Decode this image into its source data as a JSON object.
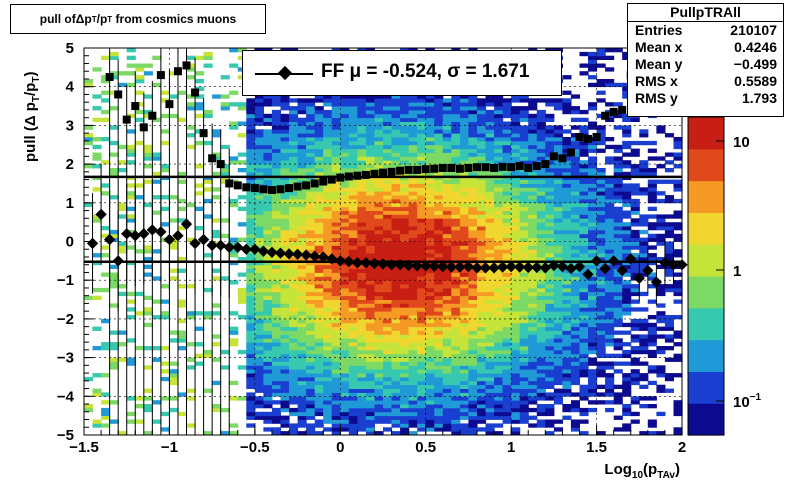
{
  "title": {
    "prefix": "pull of ",
    "delta": "Δ",
    "p": " p",
    "sub_t": "T",
    "slash": "/p",
    "sub_t2": "T",
    "suffix": " from cosmics muons"
  },
  "stats": {
    "name": "PullpTRAll",
    "rows": [
      {
        "label": "Entries",
        "value": "210107"
      },
      {
        "label": "Mean x",
        "value": "0.4246"
      },
      {
        "label": "Mean y",
        "value": "−0.499"
      },
      {
        "label": "RMS x",
        "value": "0.5589"
      },
      {
        "label": "RMS y",
        "value": "1.793"
      }
    ]
  },
  "legend": {
    "text": "FF μ = -0.524, σ =   1.671"
  },
  "colors": {
    "palette": [
      "#0c0a8f",
      "#1a3fd0",
      "#1f9ad6",
      "#37c8b0",
      "#7cd966",
      "#c6e33a",
      "#f1d62f",
      "#f59a25",
      "#e0491b",
      "#c81f14"
    ]
  },
  "chart_data": {
    "type": "heatmap",
    "xlabel": "Log10(pTAv)",
    "ylabel": "pull (Δ pT/pT)",
    "xlim": [
      -1.5,
      2
    ],
    "ylim": [
      -5,
      5
    ],
    "x_ticks": [
      "−1.5",
      "−1",
      "−0.5",
      "0",
      "0.5",
      "1",
      "1.5",
      "2"
    ],
    "y_ticks": [
      "5",
      "4",
      "3",
      "2",
      "1",
      "0",
      "−1",
      "−2",
      "−3",
      "−4",
      "−5"
    ],
    "z_scale": "log",
    "z_ticks": [
      "10",
      "1",
      "10−1"
    ],
    "grid": true,
    "lines": [
      {
        "name": "mean fit",
        "y": -0.524
      },
      {
        "name": "sigma fit",
        "y": 1.671
      }
    ],
    "series": [
      {
        "name": "FF μ = -0.524, σ =   1.671",
        "x": [
          -1.45,
          -1.4,
          -1.35,
          -1.3,
          -1.25,
          -1.2,
          -1.15,
          -1.1,
          -1.05,
          -1.0,
          -0.95,
          -0.9,
          -0.85,
          -0.8,
          -0.75,
          -0.7,
          -0.65,
          -0.6,
          -0.55,
          -0.5,
          -0.45,
          -0.4,
          -0.35,
          -0.3,
          -0.25,
          -0.2,
          -0.15,
          -0.1,
          -0.05,
          0.0,
          0.05,
          0.1,
          0.15,
          0.2,
          0.25,
          0.3,
          0.35,
          0.4,
          0.45,
          0.5,
          0.55,
          0.6,
          0.65,
          0.7,
          0.75,
          0.8,
          0.85,
          0.9,
          0.95,
          1.0,
          1.05,
          1.1,
          1.15,
          1.2,
          1.25,
          1.3,
          1.35,
          1.4,
          1.45,
          1.5,
          1.55,
          1.6,
          1.65,
          1.7,
          1.75,
          1.8,
          1.85,
          1.9,
          1.95,
          2.0
        ],
        "mean": [
          -0.05,
          0.7,
          0.05,
          -0.5,
          0.2,
          0.15,
          0.2,
          0.3,
          0.25,
          0.05,
          0.15,
          0.45,
          -0.05,
          0.05,
          -0.1,
          -0.1,
          -0.15,
          -0.15,
          -0.2,
          -0.2,
          -0.25,
          -0.28,
          -0.3,
          -0.32,
          -0.33,
          -0.35,
          -0.38,
          -0.4,
          -0.45,
          -0.5,
          -0.52,
          -0.55,
          -0.55,
          -0.57,
          -0.58,
          -0.6,
          -0.6,
          -0.62,
          -0.63,
          -0.63,
          -0.64,
          -0.65,
          -0.66,
          -0.66,
          -0.65,
          -0.68,
          -0.68,
          -0.68,
          -0.66,
          -0.65,
          -0.66,
          -0.67,
          -0.67,
          -0.68,
          -0.62,
          -0.65,
          -0.7,
          -0.65,
          -0.85,
          -0.5,
          -0.7,
          -0.5,
          -0.75,
          -0.45,
          -0.95,
          -0.75,
          -1.05,
          -0.55,
          -0.6,
          -0.6
        ],
        "sigma": [
          null,
          null,
          4.25,
          3.8,
          3.15,
          3.5,
          2.95,
          3.25,
          4.3,
          3.55,
          4.4,
          4.55,
          3.85,
          2.8,
          2.15,
          2.0,
          1.5,
          1.45,
          1.4,
          1.38,
          1.35,
          1.33,
          1.35,
          1.38,
          1.42,
          1.45,
          1.5,
          1.55,
          1.6,
          1.65,
          1.68,
          1.7,
          1.72,
          1.75,
          1.78,
          1.8,
          1.83,
          1.85,
          1.85,
          1.87,
          1.88,
          1.9,
          1.9,
          1.88,
          1.9,
          1.92,
          1.92,
          1.9,
          1.93,
          1.92,
          1.95,
          1.9,
          1.95,
          2.0,
          2.2,
          2.15,
          2.3,
          2.7,
          2.65,
          2.7,
          3.25,
          3.35,
          3.4,
          4.3,
          4.45,
          4.75,
          4.7,
          null,
          null,
          null
        ]
      }
    ]
  }
}
